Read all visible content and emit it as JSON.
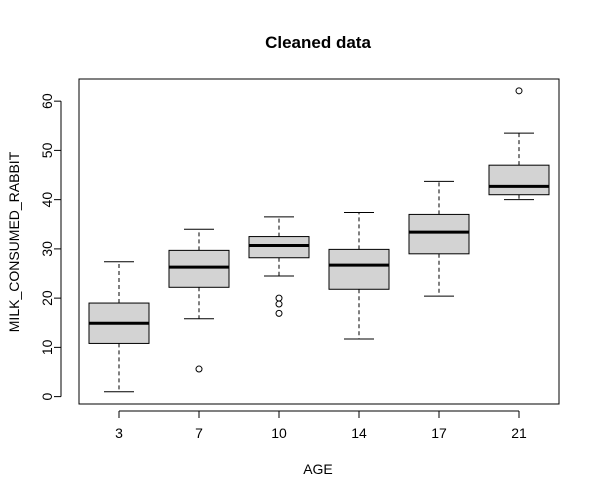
{
  "chart_data": {
    "type": "boxplot",
    "title": "Cleaned data",
    "xlabel": "AGE",
    "ylabel": "MILK_CONSUMED_RABBIT",
    "ylim": [
      -1.5,
      64.5
    ],
    "yticks": [
      0,
      10,
      20,
      30,
      40,
      50,
      60
    ],
    "grid": false,
    "categories": [
      "3",
      "7",
      "10",
      "14",
      "17",
      "21"
    ],
    "boxes": [
      {
        "category": "3",
        "whisker_low": 1.0,
        "q1": 10.8,
        "median": 14.9,
        "q3": 19.0,
        "whisker_high": 27.4,
        "outliers": []
      },
      {
        "category": "7",
        "whisker_low": 15.8,
        "q1": 22.2,
        "median": 26.3,
        "q3": 29.7,
        "whisker_high": 34.0,
        "outliers": [
          5.6
        ]
      },
      {
        "category": "10",
        "whisker_low": 24.5,
        "q1": 28.2,
        "median": 30.7,
        "q3": 32.5,
        "whisker_high": 36.5,
        "outliers": [
          20.0,
          18.8,
          16.9
        ]
      },
      {
        "category": "14",
        "whisker_low": 11.7,
        "q1": 21.8,
        "median": 26.7,
        "q3": 29.9,
        "whisker_high": 37.4,
        "outliers": []
      },
      {
        "category": "17",
        "whisker_low": 20.4,
        "q1": 29.0,
        "median": 33.4,
        "q3": 37.0,
        "whisker_high": 43.7,
        "outliers": []
      },
      {
        "category": "21",
        "whisker_low": 40.0,
        "q1": 41.0,
        "median": 42.7,
        "q3": 47.0,
        "whisker_high": 53.5,
        "outliers": [
          62.1
        ]
      }
    ]
  }
}
